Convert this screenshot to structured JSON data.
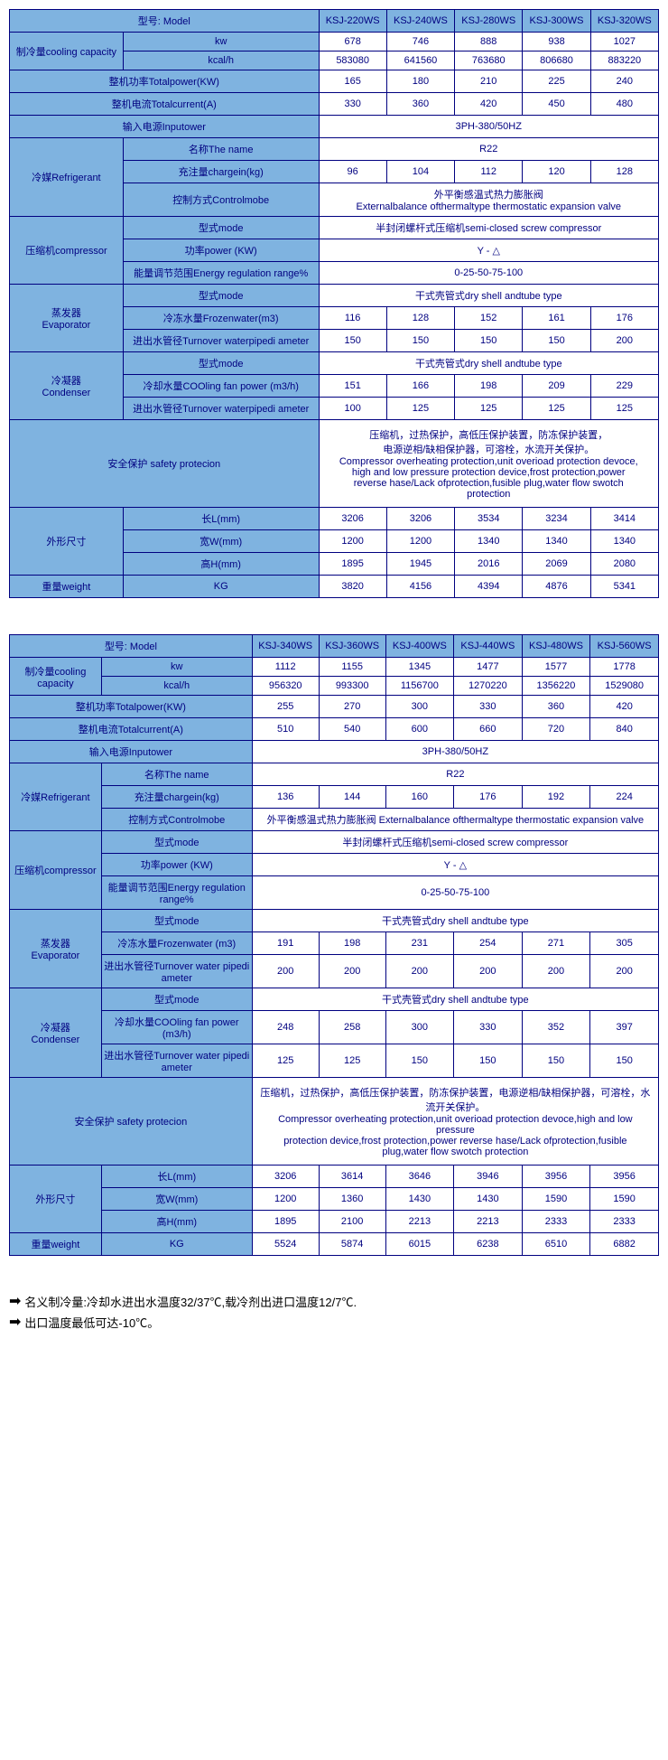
{
  "table1": {
    "headers": {
      "model": "型号: Model",
      "models": [
        "KSJ-220WS",
        "KSJ-240WS",
        "KSJ-280WS",
        "KSJ-300WS",
        "KSJ-320WS"
      ]
    },
    "rows": {
      "cooling_capacity_label": "制冷量cooling capacity",
      "kw_label": "kw",
      "kw": [
        "678",
        "746",
        "888",
        "938",
        "1027"
      ],
      "kcal_label": "kcal/h",
      "kcal": [
        "583080",
        "641560",
        "763680",
        "806680",
        "883220"
      ],
      "totalpower_label": "整机功率Totalpower(KW)",
      "totalpower": [
        "165",
        "180",
        "210",
        "225",
        "240"
      ],
      "totalcurrent_label": "整机电流Totalcurrent(A)",
      "totalcurrent": [
        "330",
        "360",
        "420",
        "450",
        "480"
      ],
      "inputpower_label": "输入电源Inputower",
      "inputpower": "3PH-380/50HZ",
      "refrigerant_label": "冷媒Refrigerant",
      "name_label": "名称The name",
      "name": "R22",
      "chargein_label": "充注量chargein(kg)",
      "chargein": [
        "96",
        "104",
        "112",
        "120",
        "128"
      ],
      "controlmode_label": "控制方式Controlmobe",
      "controlmode": "外平衡感温式热力膨胀阀\nExternalbalance ofthermaltype thermostatic expansion valve",
      "compressor_label": "压缩机compressor",
      "comp_mode_label": "型式mode",
      "comp_mode": "半封闭螺杆式压缩机semi-closed screw compressor",
      "comp_power_label": "功率power (KW)",
      "comp_power": "Y - △",
      "energy_label": "能量调节范围Energy regulation range%",
      "energy": "0-25-50-75-100",
      "evap_label": "蒸发器\nEvaporator",
      "evap_mode_label": "型式mode",
      "evap_mode": "干式壳管式dry shell andtube type",
      "frozen_label": "冷冻水量Frozenwater(m3)",
      "frozen": [
        "116",
        "128",
        "152",
        "161",
        "176"
      ],
      "evap_pipe_label": "进出水管径Turnover waterpipedi ameter",
      "evap_pipe": [
        "150",
        "150",
        "150",
        "150",
        "200"
      ],
      "cond_label": "冷凝器\nCondenser",
      "cond_mode_label": "型式mode",
      "cond_mode": "干式壳管式dry shell andtube type",
      "coolfan_label": "冷却水量COOling fan power (m3/h)",
      "coolfan": [
        "151",
        "166",
        "198",
        "209",
        "229"
      ],
      "cond_pipe_label": "进出水管径Turnover waterpipedi ameter",
      "cond_pipe": [
        "100",
        "125",
        "125",
        "125",
        "125"
      ],
      "safety_label": "安全保护 safety protecion",
      "safety": "压缩机，过热保护，高低压保护装置，防冻保护装置，\n电源逆相/缺相保护器，可溶栓，水流开关保护。\nCompressor overheating protection,unit overioad protection devoce,\nhigh and low pressure protection device,frost protection,power\nreverse hase/Lack ofprotection,fusible plug,water flow swotch\nprotection",
      "dim_label": "外形尺寸",
      "len_label": "长L(mm)",
      "len": [
        "3206",
        "3206",
        "3534",
        "3234",
        "3414"
      ],
      "wid_label": "宽W(mm)",
      "wid": [
        "1200",
        "1200",
        "1340",
        "1340",
        "1340"
      ],
      "hei_label": "高H(mm)",
      "hei": [
        "1895",
        "1945",
        "2016",
        "2069",
        "2080"
      ],
      "weight_label": "重量weight",
      "kg_label": "KG",
      "weight": [
        "3820",
        "4156",
        "4394",
        "4876",
        "5341"
      ]
    }
  },
  "table2": {
    "headers": {
      "model": "型号: Model",
      "models": [
        "KSJ-340WS",
        "KSJ-360WS",
        "KSJ-400WS",
        "KSJ-440WS",
        "KSJ-480WS",
        "KSJ-560WS"
      ]
    },
    "rows": {
      "cooling_capacity_label": "制冷量cooling capacity",
      "kw_label": "kw",
      "kw": [
        "1112",
        "1155",
        "1345",
        "1477",
        "1577",
        "1778"
      ],
      "kcal_label": "kcal/h",
      "kcal": [
        "956320",
        "993300",
        "1156700",
        "1270220",
        "1356220",
        "1529080"
      ],
      "totalpower_label": "整机功率Totalpower(KW)",
      "totalpower": [
        "255",
        "270",
        "300",
        "330",
        "360",
        "420"
      ],
      "totalcurrent_label": "整机电流Totalcurrent(A)",
      "totalcurrent": [
        "510",
        "540",
        "600",
        "660",
        "720",
        "840"
      ],
      "inputpower_label": "输入电源Inputower",
      "inputpower": "3PH-380/50HZ",
      "refrigerant_label": "冷媒Refrigerant",
      "name_label": "名称The name",
      "name": "R22",
      "chargein_label": "充注量chargein(kg)",
      "chargein": [
        "136",
        "144",
        "160",
        "176",
        "192",
        "224"
      ],
      "controlmode_label": "控制方式Controlmobe",
      "controlmode": "外平衡感温式热力膨胀阀 Externalbalance ofthermaltype thermostatic expansion valve",
      "compressor_label": "压缩机compressor",
      "comp_mode_label": "型式mode",
      "comp_mode": "半封闭螺杆式压缩机semi-closed screw compressor",
      "comp_power_label": "功率power (KW)",
      "comp_power": "Y - △",
      "energy_label": "能量调节范围Energy regulation range%",
      "energy": "0-25-50-75-100",
      "evap_label": "蒸发器\nEvaporator",
      "evap_mode_label": "型式mode",
      "evap_mode": "干式壳管式dry shell andtube type",
      "frozen_label": "冷冻水量Frozenwater (m3)",
      "frozen": [
        "191",
        "198",
        "231",
        "254",
        "271",
        "305"
      ],
      "evap_pipe_label": "进出水管径Turnover water pipedi ameter",
      "evap_pipe": [
        "200",
        "200",
        "200",
        "200",
        "200",
        "200"
      ],
      "cond_label": "冷凝器\nCondenser",
      "cond_mode_label": "型式mode",
      "cond_mode": "干式壳管式dry shell andtube type",
      "coolfan_label": "冷却水量COOling fan power (m3/h)",
      "coolfan": [
        "248",
        "258",
        "300",
        "330",
        "352",
        "397"
      ],
      "cond_pipe_label": "进出水管径Turnover water pipedi ameter",
      "cond_pipe": [
        "125",
        "125",
        "150",
        "150",
        "150",
        "150"
      ],
      "safety_label": "安全保护 safety protecion",
      "safety": "压缩机，过热保护，高低压保护装置，防冻保护装置，电源逆相/缺相保护器，可溶栓，水流开关保护。\nCompressor overheating protection,unit overioad protection devoce,high and low pressure\nprotection device,frost protection,power reverse hase/Lack ofprotection,fusible\nplug,water flow swotch protection",
      "dim_label": "外形尺寸",
      "len_label": "长L(mm)",
      "len": [
        "3206",
        "3614",
        "3646",
        "3946",
        "3956",
        "3956"
      ],
      "wid_label": "宽W(mm)",
      "wid": [
        "1200",
        "1360",
        "1430",
        "1430",
        "1590",
        "1590"
      ],
      "hei_label": "高H(mm)",
      "hei": [
        "1895",
        "2100",
        "2213",
        "2213",
        "2333",
        "2333"
      ],
      "weight_label": "重量weight",
      "kg_label": "KG",
      "weight": [
        "5524",
        "5874",
        "6015",
        "6238",
        "6510",
        "6882"
      ]
    }
  },
  "notes": {
    "n1": "名义制冷量:冷却水进出水温度32/37℃,载冷剂出进口温度12/7℃.",
    "n2": "出口温度最低可达-10℃。"
  },
  "colors": {
    "header_bg": "#7fb3e0",
    "border": "#000080",
    "text": "#000080"
  }
}
